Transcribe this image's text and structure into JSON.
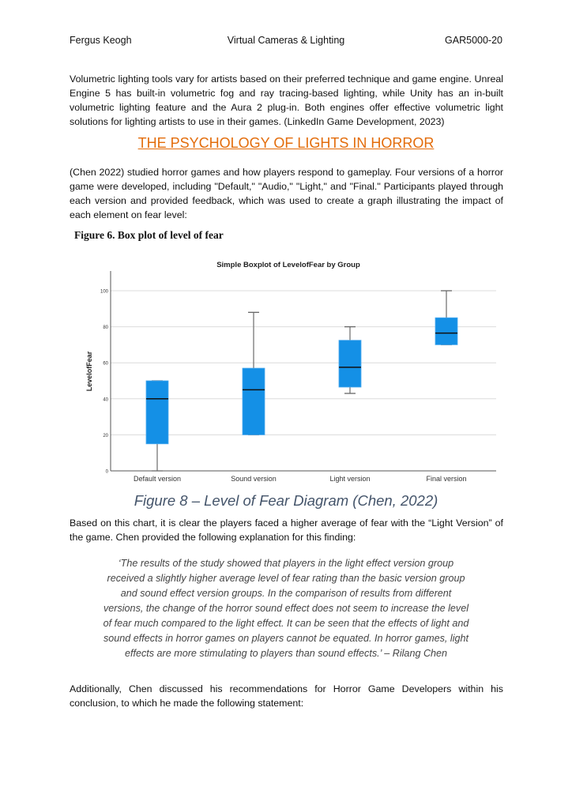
{
  "header": {
    "author": "Fergus Keogh",
    "title": "Virtual Cameras & Lighting",
    "code": "GAR5000-20"
  },
  "para1": "Volumetric lighting tools vary for artists based on their preferred technique and game engine. Unreal Engine 5 has built-in volumetric fog and ray tracing-based lighting, while Unity has an in-built volumetric lighting feature and the Aura 2 plug-in. Both engines offer effective volumetric light solutions for lighting artists to use in their games. (LinkedIn Game Development, 2023)",
  "heading": "THE PSYCHOLOGY OF LIGHTS IN HORROR",
  "para2": "(Chen 2022) studied horror games and how players respond to gameplay. Four versions of a horror game were developed, including \"Default,\" \"Audio,\" \"Light,\" and \"Final.\" Participants played through each version and provided feedback, which was used to create a graph illustrating the impact of each element on fear level:",
  "figure6_caption": "Figure 6. Box plot of level of fear",
  "chart_data": {
    "type": "boxplot",
    "title": "Simple Boxplot of LevelofFear by Group",
    "xlabel": "",
    "ylabel": "LevelofFear",
    "ylim": [
      0,
      110
    ],
    "yticks": [
      0,
      20,
      40,
      60,
      80,
      100
    ],
    "grid": true,
    "color": "#1490e6",
    "categories": [
      "Default version",
      "Sound version",
      "Light version",
      "Final version"
    ],
    "boxes": [
      {
        "min": 0,
        "q1": 15,
        "median": 40,
        "q3": 50,
        "max": 50
      },
      {
        "min": 20,
        "q1": 20,
        "median": 45,
        "q3": 57,
        "max": 88
      },
      {
        "min": 43,
        "q1": 46.5,
        "median": 57.5,
        "q3": 72.5,
        "max": 80
      },
      {
        "min": 70,
        "q1": 70,
        "median": 76.5,
        "q3": 85,
        "max": 100
      }
    ]
  },
  "figure8_caption": "Figure 8 – Level of Fear Diagram (Chen, 2022)",
  "para3": "Based on this chart, it is clear the players faced a higher average of fear with the “Light Version” of the game. Chen provided the following explanation for this finding:",
  "quote": "‘The results of the study showed that players in the light effect version group received a slightly higher average level of fear rating than the basic version group and sound effect version groups. In the comparison of results from different versions, the change of the horror sound effect does not seem to increase the level of fear much compared to the light effect. It can be seen that the effects of light and sound effects in horror games on players cannot be equated. In horror games, light effects are more stimulating to players than sound effects.’ – Rilang Chen",
  "para4": "Additionally, Chen discussed his recommendations for Horror Game Developers within his conclusion, to which he made the following statement:"
}
